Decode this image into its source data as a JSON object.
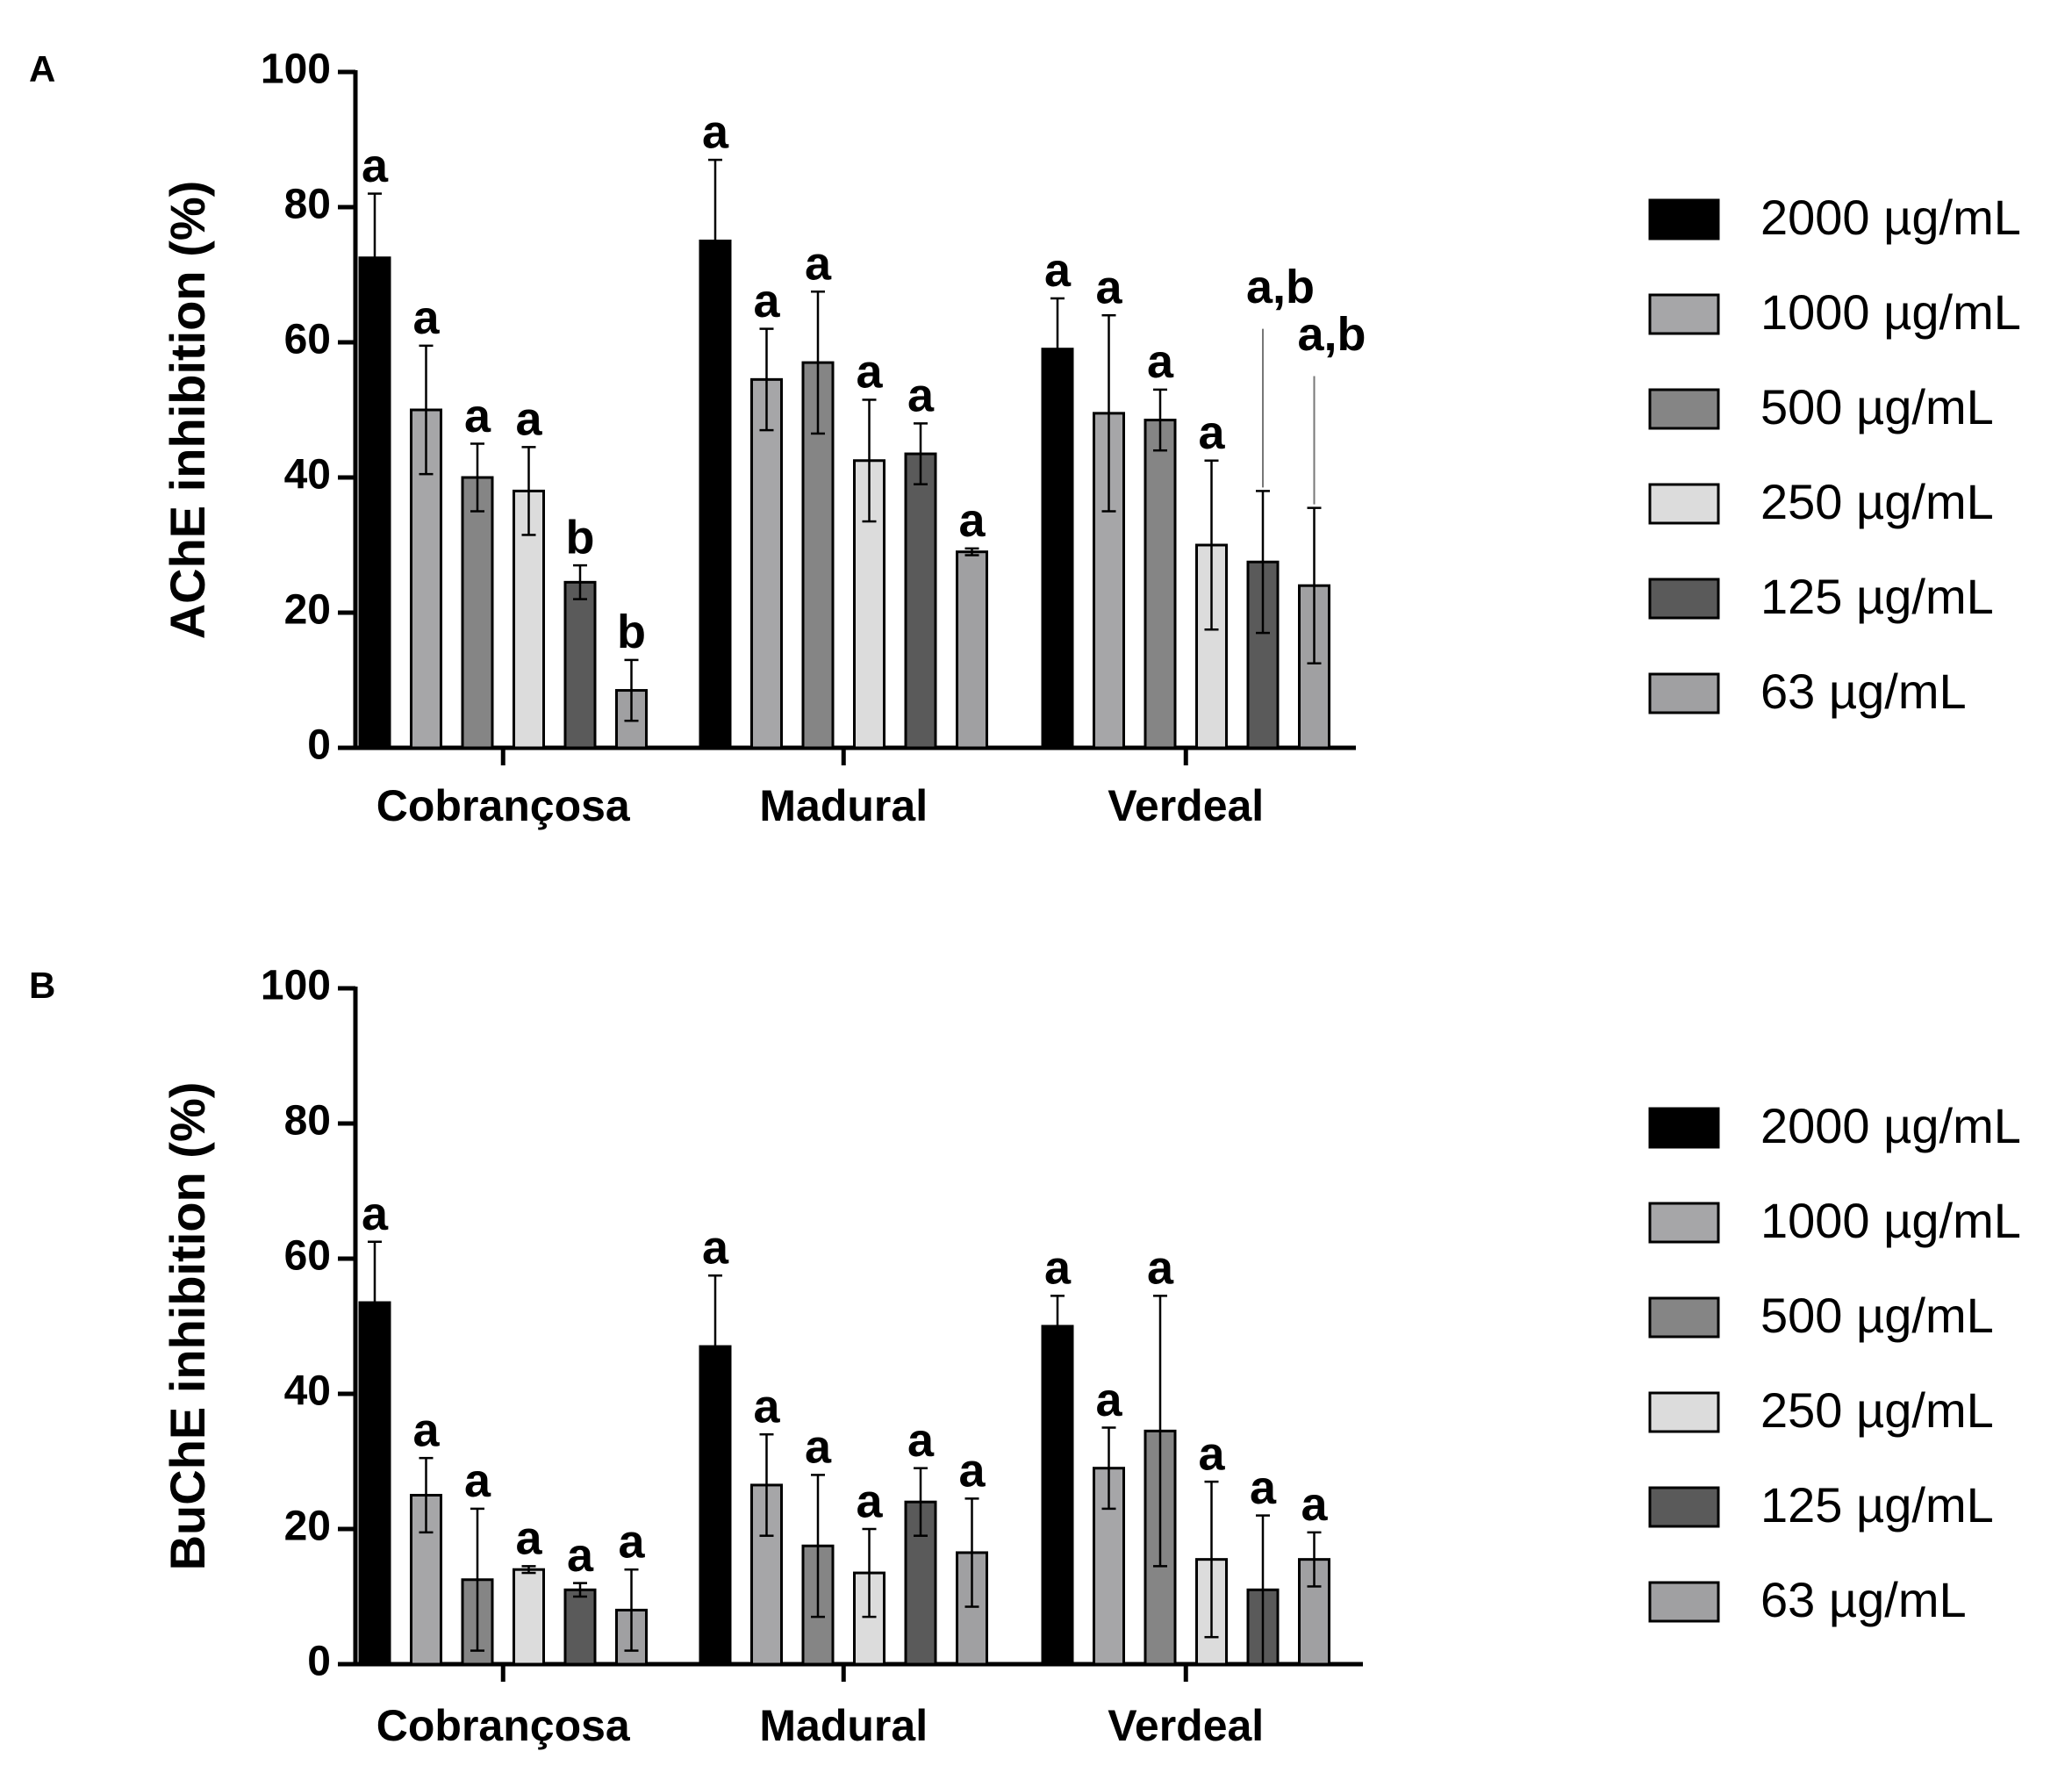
{
  "series_colors": {
    "2000 µg/mL": "#000000",
    "1000 µg/mL": "#a6a6a8",
    "500 µg/mL": "#858585",
    "250 µg/mL": "#dcdcdc",
    "125 µg/mL": "#5a5a5a",
    "63 µg/mL": "#a0a0a2"
  },
  "chart_data": [
    {
      "type": "bar",
      "panel_label": "A",
      "title": "",
      "xlabel": "",
      "ylabel": "AChE inhibition (%)",
      "ylim": [
        0,
        100
      ],
      "yticks": [
        "0",
        "20",
        "40",
        "60",
        "80",
        "100"
      ],
      "categories": [
        "Cobrançosa",
        "Madural",
        "Verdeal"
      ],
      "legend": [
        "2000 µg/mL",
        "1000 µg/mL",
        "500 µg/mL",
        "250 µg/mL",
        "125 µg/mL",
        "63 µg/mL"
      ],
      "legend_position": "right",
      "series": [
        {
          "name": "2000 µg/mL",
          "values": [
            72.5,
            75,
            59
          ],
          "errors": [
            9.5,
            12,
            7.5
          ],
          "labels": [
            "a",
            "a",
            "a"
          ]
        },
        {
          "name": "1000 µg/mL",
          "values": [
            50,
            54.5,
            49.5
          ],
          "errors": [
            9.5,
            7.5,
            14.5
          ],
          "labels": [
            "a",
            "a",
            "a"
          ]
        },
        {
          "name": "500 µg/mL",
          "values": [
            40,
            57,
            48.5
          ],
          "errors": [
            5,
            10.5,
            4.5
          ],
          "labels": [
            "a",
            "a",
            "a"
          ]
        },
        {
          "name": "250 µg/mL",
          "values": [
            38,
            42.5,
            30
          ],
          "errors": [
            6.5,
            9,
            12.5
          ],
          "labels": [
            "a",
            "a",
            "a"
          ]
        },
        {
          "name": "125 µg/mL",
          "values": [
            24.5,
            43.5,
            27.5
          ],
          "errors": [
            2.5,
            4.5,
            10.5
          ],
          "labels": [
            "b",
            "a",
            "a,b"
          ]
        },
        {
          "name": "63 µg/mL",
          "values": [
            8.5,
            29,
            24
          ],
          "errors": [
            4.5,
            0.5,
            11.5
          ],
          "labels": [
            "b",
            "a",
            "a,b"
          ]
        }
      ]
    },
    {
      "type": "bar",
      "panel_label": "B",
      "title": "",
      "xlabel": "",
      "ylabel": "BuChE inhibition (%)",
      "ylim": [
        0,
        100
      ],
      "yticks": [
        "0",
        "20",
        "40",
        "60",
        "80",
        "100"
      ],
      "categories": [
        "Cobrançosa",
        "Madural",
        "Verdeal"
      ],
      "legend": [
        "2000 µg/mL",
        "1000 µg/mL",
        "500 µg/mL",
        "250 µg/mL",
        "125 µg/mL",
        "63 µg/mL"
      ],
      "legend_position": "right",
      "series": [
        {
          "name": "2000 µg/mL",
          "values": [
            53.5,
            47,
            50
          ],
          "errors": [
            9,
            10.5,
            4.5
          ],
          "labels": [
            "a",
            "a",
            "a"
          ]
        },
        {
          "name": "1000 µg/mL",
          "values": [
            25,
            26.5,
            29
          ],
          "errors": [
            5.5,
            7.5,
            6
          ],
          "labels": [
            "a",
            "a",
            "a"
          ]
        },
        {
          "name": "500 µg/mL",
          "values": [
            12.5,
            17.5,
            34.5
          ],
          "errors": [
            10.5,
            10.5,
            20
          ],
          "labels": [
            "a",
            "a",
            "a"
          ]
        },
        {
          "name": "250 µg/mL",
          "values": [
            14,
            13.5,
            15.5
          ],
          "errors": [
            0.5,
            6.5,
            11.5
          ],
          "labels": [
            "a",
            "a",
            "a"
          ]
        },
        {
          "name": "125 µg/mL",
          "values": [
            11,
            24,
            11
          ],
          "errors": [
            1,
            5,
            11
          ],
          "labels": [
            "a",
            "a",
            "a"
          ]
        },
        {
          "name": "63 µg/mL",
          "values": [
            8,
            16.5,
            15.5
          ],
          "errors": [
            6,
            8,
            4
          ],
          "labels": [
            "a",
            "a",
            "a"
          ]
        }
      ]
    }
  ]
}
